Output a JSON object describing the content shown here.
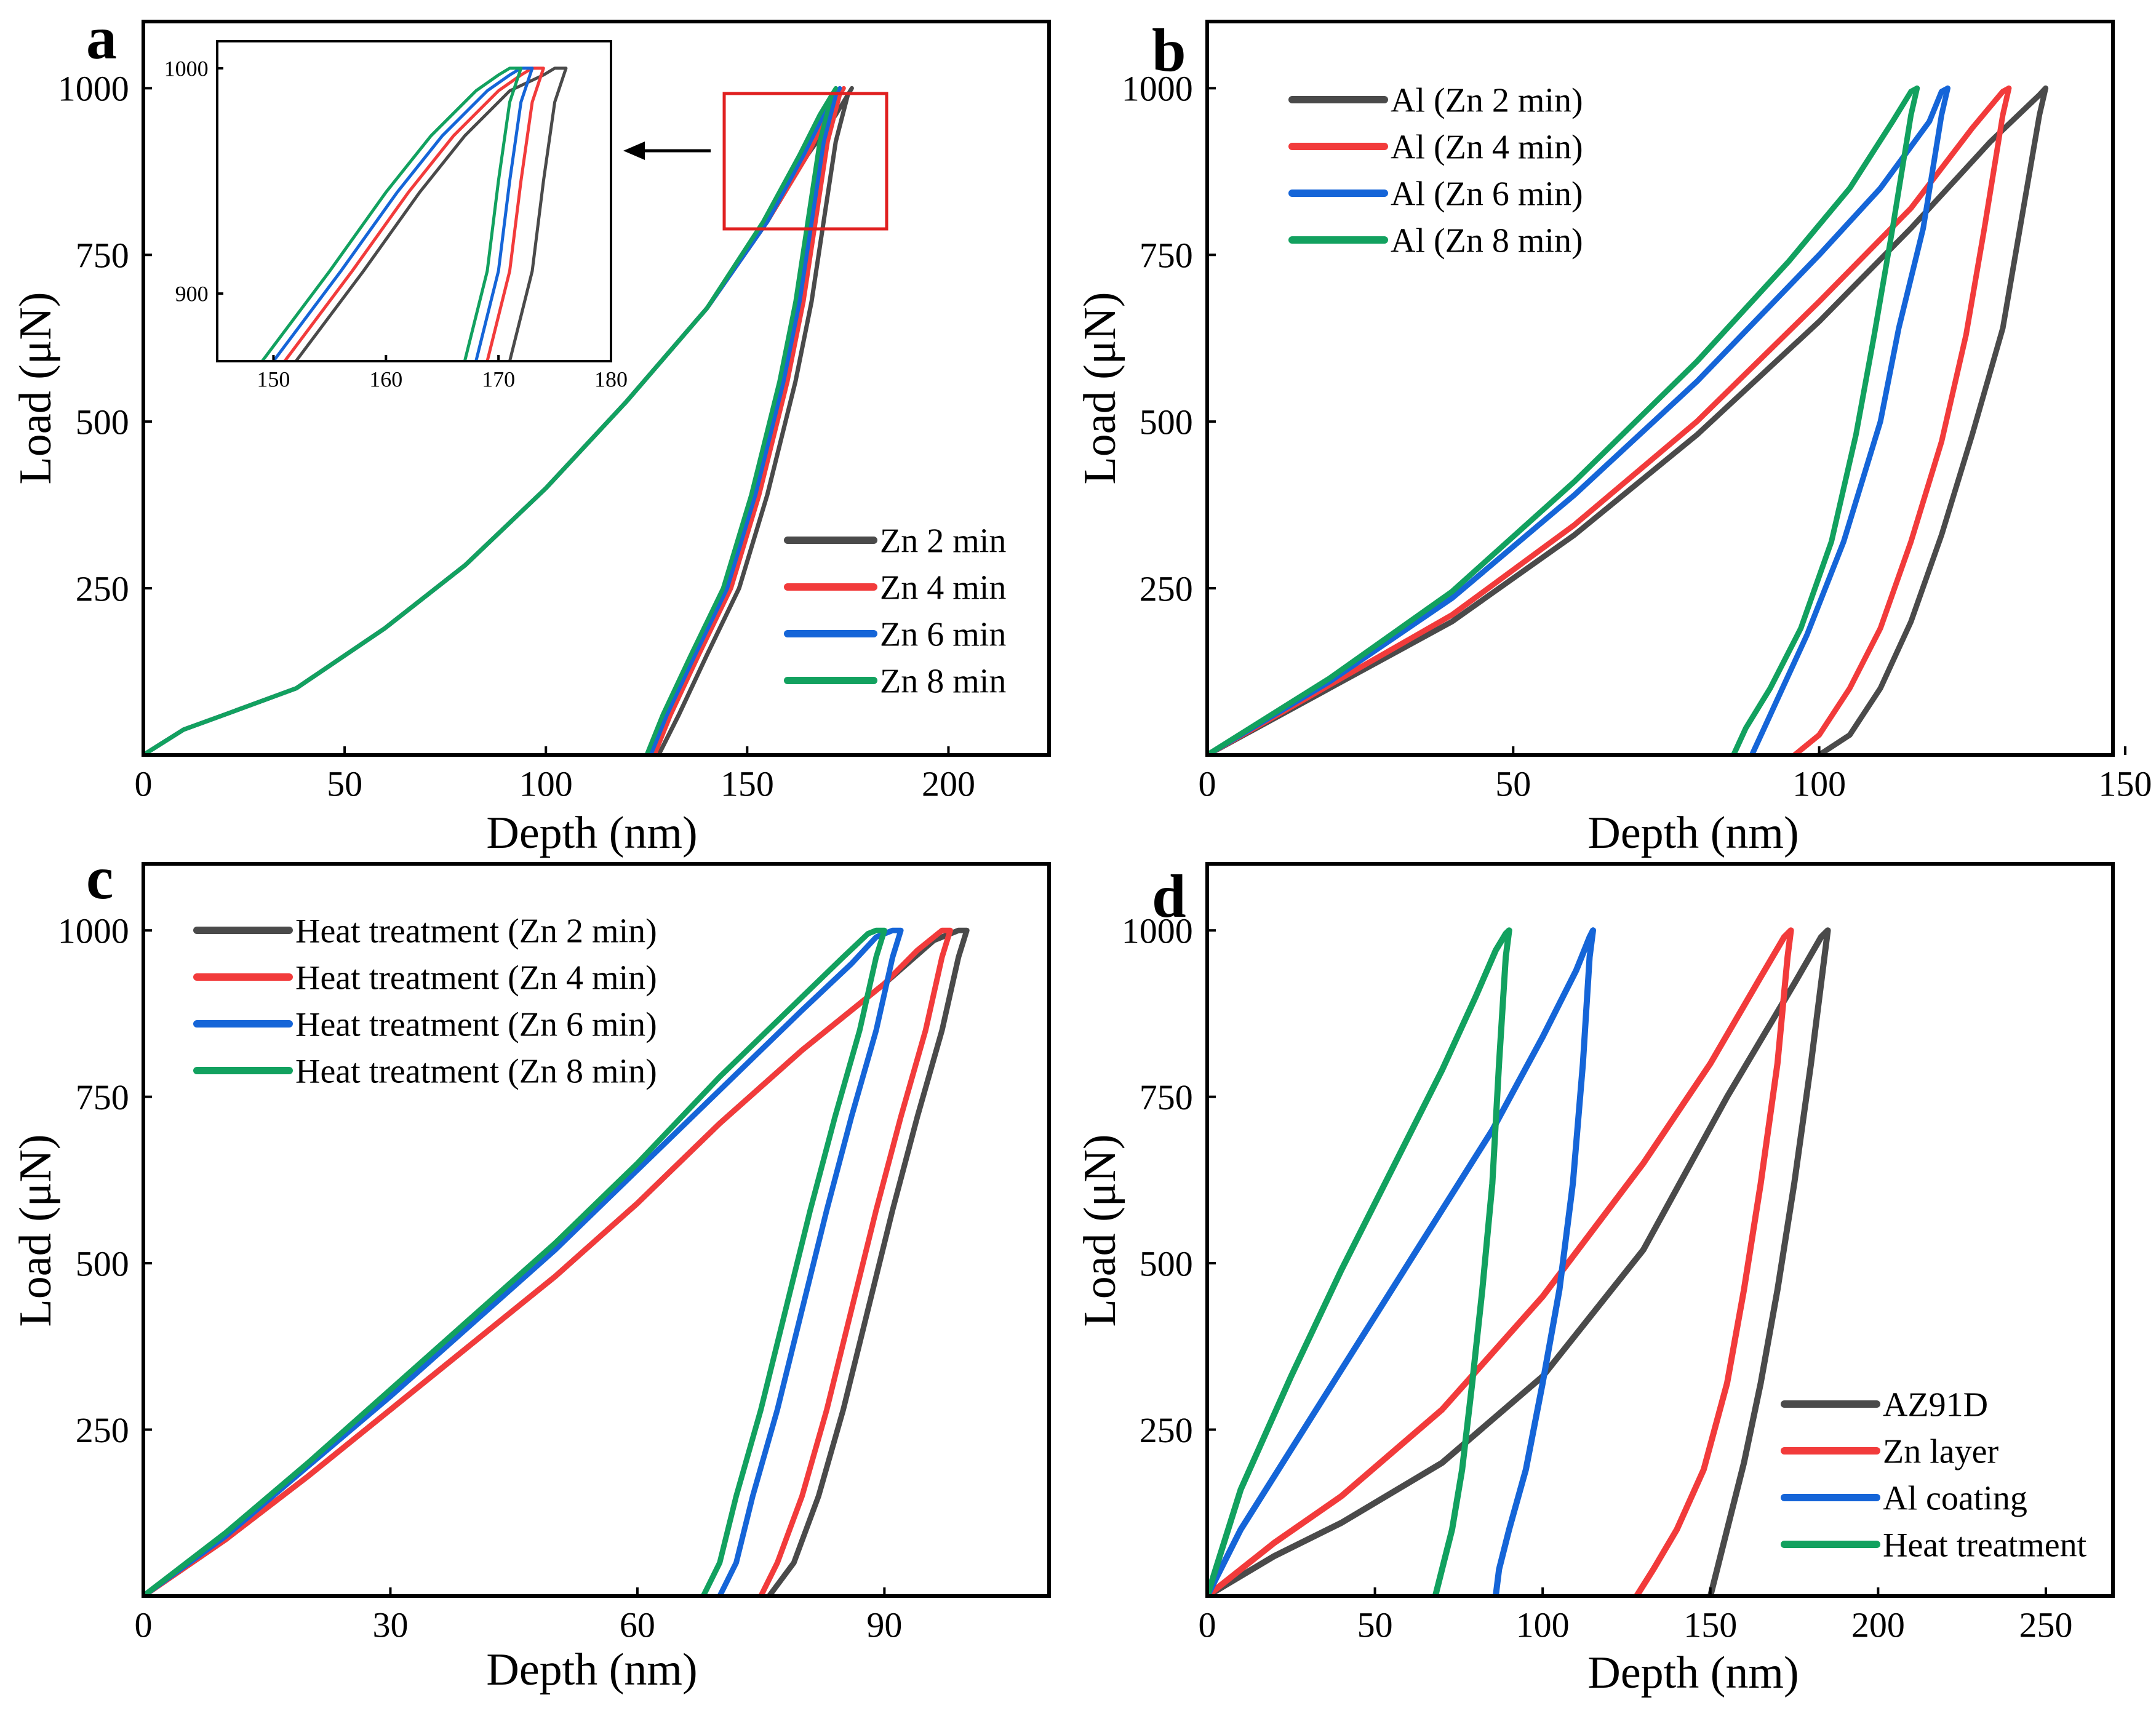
{
  "colors": {
    "black": "#4a4a4a",
    "red": "#f23b3b",
    "blue": "#1565d8",
    "green": "#12a15f",
    "frame": "#000000",
    "inset_box": "#e02020"
  },
  "chart_data": [
    {
      "panel": "a",
      "type": "line",
      "title": "",
      "xlabel": "Depth (nm)",
      "ylabel": "Load (μN)",
      "xlim": [
        0,
        225
      ],
      "ylim": [
        0,
        1100
      ],
      "xticks": [
        0,
        50,
        100,
        150,
        200
      ],
      "yticks": [
        250,
        500,
        750,
        1000
      ],
      "legend_position": "lower-right",
      "series": [
        {
          "name": "Zn 2 min",
          "color": "#4a4a4a",
          "x": [
            0,
            10,
            20,
            38,
            60,
            80,
            100,
            120,
            140,
            155,
            165,
            172,
            175,
            176,
            175,
            172,
            169,
            166,
            162,
            155,
            148,
            140,
            133,
            128
          ],
          "y": [
            0,
            38,
            60,
            100,
            190,
            285,
            400,
            530,
            670,
            800,
            900,
            960,
            990,
            1000,
            990,
            920,
            800,
            680,
            560,
            390,
            250,
            150,
            60,
            0
          ]
        },
        {
          "name": "Zn 4 min",
          "color": "#f23b3b",
          "x": [
            0,
            10,
            20,
            38,
            60,
            80,
            100,
            120,
            140,
            155,
            165,
            170,
            173,
            174,
            173,
            170,
            167,
            164,
            160,
            153,
            146,
            138,
            131,
            127
          ],
          "y": [
            0,
            38,
            60,
            100,
            190,
            285,
            400,
            530,
            670,
            800,
            900,
            960,
            990,
            1000,
            990,
            920,
            800,
            680,
            560,
            390,
            250,
            150,
            60,
            0
          ]
        },
        {
          "name": "Zn 6 min",
          "color": "#1565d8",
          "x": [
            0,
            10,
            20,
            38,
            60,
            80,
            100,
            120,
            140,
            155,
            164,
            169,
            172,
            173,
            172,
            169,
            166,
            163,
            159,
            152,
            145,
            137,
            130,
            126
          ],
          "y": [
            0,
            38,
            60,
            100,
            190,
            285,
            400,
            530,
            670,
            800,
            900,
            960,
            990,
            1000,
            990,
            920,
            800,
            680,
            560,
            390,
            250,
            150,
            60,
            0
          ]
        },
        {
          "name": "Zn 8 min",
          "color": "#12a15f",
          "x": [
            0,
            10,
            20,
            38,
            60,
            80,
            100,
            120,
            140,
            154,
            163,
            168,
            171,
            172,
            171,
            168,
            165,
            162,
            158,
            151,
            144,
            136,
            129,
            125
          ],
          "y": [
            0,
            38,
            60,
            100,
            190,
            285,
            400,
            530,
            670,
            800,
            900,
            960,
            990,
            1000,
            990,
            920,
            800,
            680,
            560,
            390,
            250,
            150,
            60,
            0
          ]
        }
      ]
    },
    {
      "panel": "a-inset",
      "type": "line",
      "title": "",
      "xlabel": "",
      "ylabel": "",
      "xlim": [
        145,
        180
      ],
      "ylim": [
        870,
        1012
      ],
      "xticks": [
        150,
        160,
        170,
        180
      ],
      "yticks": [
        900,
        1000
      ],
      "series": [
        {
          "name": "Zn 2 min",
          "color": "#4a4a4a",
          "x": [
            152,
            158,
            163,
            167,
            171,
            174,
            175,
            176,
            175,
            174,
            173,
            171
          ],
          "y": [
            870,
            910,
            945,
            970,
            990,
            997,
            1000,
            1000,
            985,
            950,
            910,
            870
          ]
        },
        {
          "name": "Zn 4 min",
          "color": "#f23b3b",
          "x": [
            151,
            157,
            162,
            166,
            170,
            172,
            173,
            174,
            173,
            172,
            171,
            169
          ],
          "y": [
            870,
            910,
            945,
            970,
            990,
            997,
            1000,
            1000,
            985,
            950,
            910,
            870
          ]
        },
        {
          "name": "Zn 6 min",
          "color": "#1565d8",
          "x": [
            150,
            156,
            161,
            165,
            169,
            171,
            172,
            173,
            172,
            171,
            170,
            168
          ],
          "y": [
            870,
            910,
            945,
            970,
            990,
            997,
            1000,
            1000,
            985,
            950,
            910,
            870
          ]
        },
        {
          "name": "Zn 8 min",
          "color": "#12a15f",
          "x": [
            149,
            155,
            160,
            164,
            168,
            170,
            171,
            172,
            171,
            170,
            169,
            167
          ],
          "y": [
            870,
            910,
            945,
            970,
            990,
            997,
            1000,
            1000,
            985,
            950,
            910,
            870
          ]
        }
      ]
    },
    {
      "panel": "b",
      "type": "line",
      "title": "",
      "xlabel": "Depth (nm)",
      "ylabel": "Load (μN)",
      "xlim": [
        0,
        148
      ],
      "ylim": [
        0,
        1100
      ],
      "xticks": [
        0,
        50,
        100,
        150
      ],
      "yticks": [
        250,
        500,
        750,
        1000
      ],
      "legend_position": "top-left",
      "series": [
        {
          "name": "Al (Zn 2 min)",
          "color": "#4a4a4a",
          "x": [
            0,
            20,
            40,
            60,
            80,
            100,
            115,
            128,
            136,
            137,
            136,
            133,
            130,
            125,
            120,
            115,
            110,
            105,
            100
          ],
          "y": [
            0,
            100,
            200,
            330,
            480,
            650,
            790,
            920,
            990,
            1000,
            960,
            800,
            640,
            480,
            330,
            200,
            100,
            30,
            0
          ]
        },
        {
          "name": "Al (Zn 4 min)",
          "color": "#f23b3b",
          "x": [
            0,
            20,
            40,
            60,
            80,
            100,
            115,
            125,
            130,
            131,
            130,
            127,
            124,
            120,
            115,
            110,
            105,
            100,
            96
          ],
          "y": [
            0,
            105,
            210,
            345,
            500,
            680,
            820,
            940,
            995,
            1000,
            960,
            790,
            630,
            470,
            320,
            190,
            100,
            30,
            0
          ]
        },
        {
          "name": "Al (Zn 6 min)",
          "color": "#1565d8",
          "x": [
            0,
            20,
            40,
            60,
            80,
            100,
            110,
            118,
            120,
            121,
            120,
            117,
            113,
            110,
            104,
            98,
            94,
            91,
            89
          ],
          "y": [
            0,
            110,
            235,
            390,
            560,
            750,
            850,
            950,
            995,
            1000,
            960,
            790,
            640,
            500,
            320,
            180,
            100,
            40,
            0
          ]
        },
        {
          "name": "Al (Zn 8 min)",
          "color": "#12a15f",
          "x": [
            0,
            20,
            40,
            60,
            80,
            95,
            105,
            112,
            115,
            116,
            115,
            112,
            109,
            106,
            102,
            97,
            92,
            88,
            86
          ],
          "y": [
            0,
            115,
            245,
            410,
            590,
            740,
            850,
            950,
            995,
            1000,
            960,
            790,
            630,
            480,
            320,
            190,
            100,
            40,
            0
          ]
        }
      ]
    },
    {
      "panel": "c",
      "type": "line",
      "title": "",
      "xlabel": "Depth (nm)",
      "ylabel": "Load (μN)",
      "xlim": [
        0,
        110
      ],
      "ylim": [
        0,
        1100
      ],
      "xticks": [
        0,
        30,
        60,
        90
      ],
      "yticks": [
        250,
        500,
        750,
        1000
      ],
      "legend_position": "top-left",
      "series": [
        {
          "name": "Heat treatment (Zn 2 min)",
          "color": "#4a4a4a",
          "x": [
            0,
            10,
            20,
            30,
            40,
            50,
            60,
            70,
            80,
            90,
            96,
            99,
            100,
            99,
            97,
            94,
            91,
            88,
            85,
            82,
            79,
            76
          ],
          "y": [
            0,
            85,
            180,
            280,
            380,
            480,
            590,
            710,
            820,
            920,
            985,
            1000,
            1000,
            960,
            850,
            720,
            580,
            430,
            280,
            150,
            50,
            0
          ]
        },
        {
          "name": "Heat treatment (Zn 4 min)",
          "color": "#f23b3b",
          "x": [
            0,
            10,
            20,
            30,
            40,
            50,
            60,
            70,
            80,
            90,
            94,
            97,
            98,
            97,
            95,
            92,
            89,
            86,
            83,
            80,
            77,
            75
          ],
          "y": [
            0,
            85,
            180,
            280,
            380,
            480,
            590,
            710,
            820,
            920,
            970,
            1000,
            1000,
            960,
            850,
            720,
            580,
            430,
            280,
            150,
            50,
            0
          ]
        },
        {
          "name": "Heat treatment (Zn 6 min)",
          "color": "#1565d8",
          "x": [
            0,
            10,
            20,
            30,
            40,
            50,
            60,
            70,
            80,
            86,
            89,
            91,
            92,
            91,
            89,
            86,
            83,
            80,
            77,
            74,
            72,
            70
          ],
          "y": [
            0,
            90,
            195,
            300,
            410,
            520,
            640,
            760,
            880,
            950,
            990,
            1000,
            1000,
            960,
            850,
            720,
            580,
            430,
            280,
            150,
            50,
            0
          ]
        },
        {
          "name": "Heat treatment (Zn 8 min)",
          "color": "#12a15f",
          "x": [
            0,
            10,
            20,
            30,
            40,
            50,
            60,
            70,
            80,
            85,
            88,
            89,
            90,
            89,
            87,
            84,
            81,
            78,
            75,
            72,
            70,
            68
          ],
          "y": [
            0,
            95,
            200,
            310,
            420,
            530,
            650,
            780,
            900,
            960,
            995,
            1000,
            1000,
            960,
            850,
            720,
            580,
            430,
            280,
            150,
            50,
            0
          ]
        }
      ]
    },
    {
      "panel": "d",
      "type": "line",
      "title": "",
      "xlabel": "Depth (nm)",
      "ylabel": "Load (μN)",
      "xlim": [
        0,
        270
      ],
      "ylim": [
        0,
        1100
      ],
      "xticks": [
        0,
        50,
        100,
        150,
        200,
        250
      ],
      "yticks": [
        250,
        500,
        750,
        1000
      ],
      "legend_position": "lower-right",
      "series": [
        {
          "name": "AZ91D",
          "color": "#4a4a4a",
          "x": [
            0,
            20,
            40,
            70,
            100,
            130,
            155,
            175,
            183,
            185,
            184,
            180,
            175,
            170,
            165,
            160,
            155,
            152,
            150
          ],
          "y": [
            0,
            60,
            110,
            200,
            330,
            520,
            750,
            920,
            990,
            1000,
            960,
            800,
            620,
            460,
            320,
            200,
            100,
            40,
            0
          ]
        },
        {
          "name": "Zn layer",
          "color": "#f23b3b",
          "x": [
            0,
            20,
            40,
            70,
            100,
            130,
            150,
            165,
            172,
            174,
            173,
            170,
            165,
            160,
            155,
            148,
            140,
            133,
            128
          ],
          "y": [
            0,
            80,
            150,
            280,
            450,
            650,
            800,
            930,
            990,
            1000,
            960,
            800,
            620,
            460,
            320,
            190,
            100,
            40,
            0
          ]
        },
        {
          "name": "Al coating",
          "color": "#1565d8",
          "x": [
            0,
            10,
            25,
            45,
            65,
            85,
            100,
            110,
            114,
            115,
            114,
            112,
            109,
            105,
            100,
            95,
            90,
            87,
            86
          ],
          "y": [
            0,
            100,
            220,
            380,
            540,
            700,
            840,
            940,
            990,
            1000,
            960,
            800,
            620,
            460,
            320,
            190,
            100,
            40,
            0
          ]
        },
        {
          "name": "Heat treatment",
          "color": "#12a15f",
          "x": [
            0,
            10,
            25,
            40,
            55,
            70,
            80,
            86,
            89,
            90,
            89,
            87,
            85,
            82,
            79,
            76,
            73,
            70,
            68
          ],
          "y": [
            0,
            160,
            330,
            490,
            640,
            790,
            900,
            970,
            995,
            1000,
            960,
            800,
            620,
            460,
            320,
            190,
            100,
            40,
            0
          ]
        }
      ]
    }
  ],
  "panel_labels": {
    "a": "a",
    "b": "b",
    "c": "c",
    "d": "d"
  }
}
